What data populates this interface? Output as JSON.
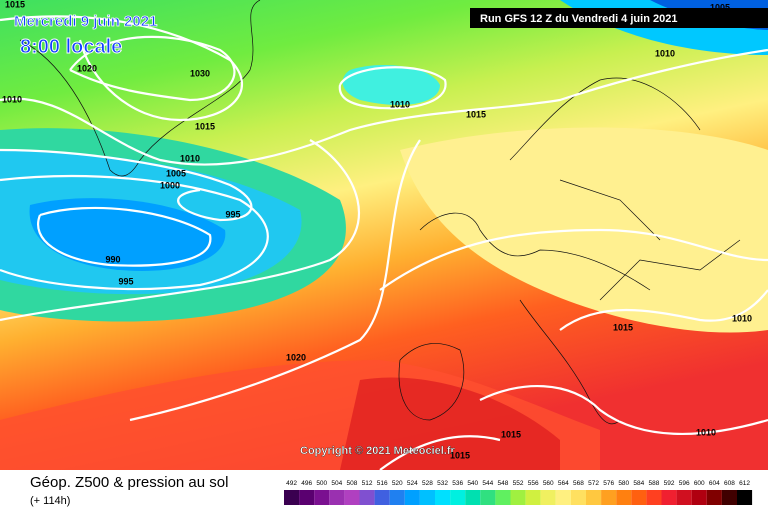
{
  "header": {
    "date": "Mercredi 9 juin 2021",
    "time": "8:00 locale",
    "run": "Run GFS 12 Z du Vendredi 4 juin 2021"
  },
  "copyright": "Copyright © 2021 Meteociel.fr",
  "footer": {
    "title": "Géop. Z500 & pression au sol",
    "lead": "(+ 114h)"
  },
  "isobar_labels": [
    1015,
    1020,
    1030,
    1010,
    1010,
    1015,
    1015,
    1010,
    1005,
    1000,
    995,
    990,
    995,
    1020,
    1015,
    1010,
    1015,
    1010,
    1010,
    1005,
    1015
  ],
  "scale": {
    "values": [
      492,
      496,
      500,
      504,
      508,
      512,
      516,
      520,
      524,
      528,
      532,
      536,
      540,
      544,
      548,
      552,
      556,
      560,
      564,
      568,
      572,
      576,
      580,
      584,
      588,
      592,
      596,
      600,
      604,
      608,
      612
    ],
    "colors": [
      "#3a0050",
      "#5a0070",
      "#7a1090",
      "#9a30b0",
      "#b040c0",
      "#8050d0",
      "#4060e0",
      "#2080f0",
      "#00a0ff",
      "#00c0ff",
      "#00e0ff",
      "#00f0e0",
      "#00e0b0",
      "#30e080",
      "#60f060",
      "#a0f040",
      "#d0f040",
      "#f0f060",
      "#fff080",
      "#ffe060",
      "#ffc840",
      "#ffa020",
      "#ff8010",
      "#ff6010",
      "#ff4020",
      "#f02030",
      "#d01020",
      "#b00010",
      "#800000",
      "#400000",
      "#000000"
    ]
  }
}
